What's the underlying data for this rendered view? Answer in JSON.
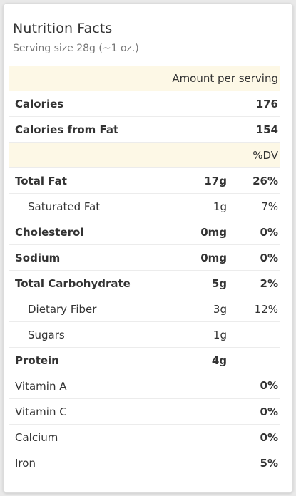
{
  "header": {
    "title": "Nutrition Facts",
    "serving": "Serving size 28g (~1 oz.)"
  },
  "amount_header": "Amount per serving",
  "calories": {
    "label": "Calories",
    "value": "176"
  },
  "calories_fat": {
    "label": "Calories from Fat",
    "value": "154"
  },
  "dv_header": "%DV",
  "nutrients": [
    {
      "label": "Total Fat",
      "amount": "17g",
      "dv": "26%"
    },
    {
      "label": "Saturated Fat",
      "amount": "1g",
      "dv": "7%"
    },
    {
      "label": "Cholesterol",
      "amount": "0mg",
      "dv": "0%"
    },
    {
      "label": "Sodium",
      "amount": "0mg",
      "dv": "0%"
    },
    {
      "label": "Total Carbohydrate",
      "amount": "5g",
      "dv": "2%"
    },
    {
      "label": "Dietary Fiber",
      "amount": "3g",
      "dv": "12%"
    },
    {
      "label": "Sugars",
      "amount": "1g",
      "dv": ""
    },
    {
      "label": "Protein",
      "amount": "4g",
      "dv": ""
    }
  ],
  "vitamins": [
    {
      "label": "Vitamin A",
      "dv": "0%"
    },
    {
      "label": "Vitamin C",
      "dv": "0%"
    },
    {
      "label": "Calcium",
      "dv": "0%"
    },
    {
      "label": "Iron",
      "dv": "5%"
    }
  ]
}
